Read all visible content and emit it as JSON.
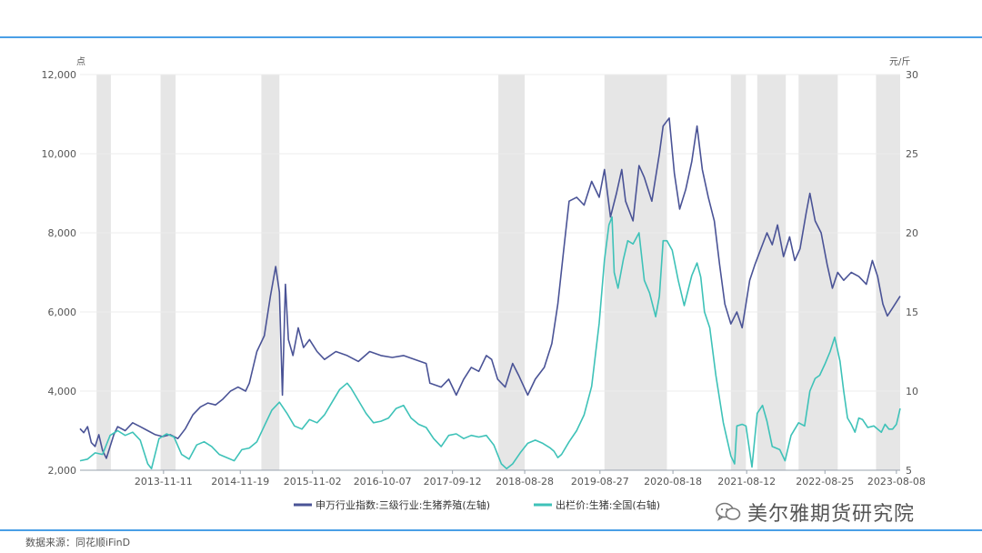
{
  "chart_data": {
    "type": "line",
    "left_unit": "点",
    "right_unit": "元/斤",
    "left_axis": {
      "min": 2000,
      "max": 12000,
      "ticks": [
        2000,
        4000,
        6000,
        8000,
        10000,
        12000
      ],
      "tick_labels": [
        "2,000",
        "4,000",
        "6,000",
        "8,000",
        "10,000",
        "12,000"
      ]
    },
    "right_axis": {
      "min": 5,
      "max": 30,
      "ticks": [
        5,
        10,
        15,
        20,
        25,
        30
      ],
      "tick_labels": [
        "5",
        "10",
        "15",
        "20",
        "25",
        "30"
      ]
    },
    "x_range": [
      2012.75,
      2023.65
    ],
    "x_ticks": [
      {
        "x": 2013.86,
        "label": "2013-11-11"
      },
      {
        "x": 2014.88,
        "label": "2014-11-19"
      },
      {
        "x": 2015.84,
        "label": "2015-11-02"
      },
      {
        "x": 2016.77,
        "label": "2016-10-07"
      },
      {
        "x": 2017.7,
        "label": "2017-09-12"
      },
      {
        "x": 2018.66,
        "label": "2018-08-28"
      },
      {
        "x": 2019.66,
        "label": "2019-08-27"
      },
      {
        "x": 2020.63,
        "label": "2020-08-18"
      },
      {
        "x": 2021.61,
        "label": "2021-08-12"
      },
      {
        "x": 2022.65,
        "label": "2022-08-25"
      },
      {
        "x": 2023.6,
        "label": "2023-08-08"
      }
    ],
    "shaded_periods": [
      [
        2012.97,
        2013.16
      ],
      [
        2013.82,
        2014.02
      ],
      [
        2015.16,
        2015.4
      ],
      [
        2018.31,
        2018.66
      ],
      [
        2019.72,
        2020.55
      ],
      [
        2021.4,
        2021.6
      ],
      [
        2021.75,
        2022.13
      ],
      [
        2022.3,
        2022.82
      ],
      [
        2023.33,
        2023.65
      ]
    ],
    "series": [
      {
        "name": "申万行业指数:三级行业:生猪养殖(左轴)",
        "axis": "left",
        "color": "#4a5396",
        "points": [
          [
            2012.75,
            3050
          ],
          [
            2012.8,
            2950
          ],
          [
            2012.85,
            3100
          ],
          [
            2012.9,
            2700
          ],
          [
            2012.95,
            2600
          ],
          [
            2013.0,
            2900
          ],
          [
            2013.05,
            2500
          ],
          [
            2013.1,
            2300
          ],
          [
            2013.15,
            2600
          ],
          [
            2013.2,
            2900
          ],
          [
            2013.25,
            3100
          ],
          [
            2013.35,
            3000
          ],
          [
            2013.45,
            3200
          ],
          [
            2013.55,
            3100
          ],
          [
            2013.65,
            3000
          ],
          [
            2013.75,
            2900
          ],
          [
            2013.85,
            2850
          ],
          [
            2013.95,
            2900
          ],
          [
            2014.05,
            2800
          ],
          [
            2014.15,
            3050
          ],
          [
            2014.25,
            3400
          ],
          [
            2014.35,
            3600
          ],
          [
            2014.45,
            3700
          ],
          [
            2014.55,
            3650
          ],
          [
            2014.65,
            3800
          ],
          [
            2014.75,
            4000
          ],
          [
            2014.85,
            4100
          ],
          [
            2014.95,
            4000
          ],
          [
            2015.0,
            4200
          ],
          [
            2015.1,
            5000
          ],
          [
            2015.2,
            5400
          ],
          [
            2015.28,
            6400
          ],
          [
            2015.35,
            7150
          ],
          [
            2015.4,
            6500
          ],
          [
            2015.44,
            3900
          ],
          [
            2015.48,
            6700
          ],
          [
            2015.52,
            5300
          ],
          [
            2015.58,
            4900
          ],
          [
            2015.65,
            5600
          ],
          [
            2015.72,
            5100
          ],
          [
            2015.8,
            5300
          ],
          [
            2015.9,
            5000
          ],
          [
            2016.0,
            4800
          ],
          [
            2016.15,
            5000
          ],
          [
            2016.3,
            4900
          ],
          [
            2016.45,
            4750
          ],
          [
            2016.6,
            5000
          ],
          [
            2016.75,
            4900
          ],
          [
            2016.9,
            4850
          ],
          [
            2017.05,
            4900
          ],
          [
            2017.2,
            4800
          ],
          [
            2017.35,
            4700
          ],
          [
            2017.4,
            4200
          ],
          [
            2017.55,
            4100
          ],
          [
            2017.65,
            4300
          ],
          [
            2017.75,
            3900
          ],
          [
            2017.85,
            4300
          ],
          [
            2017.95,
            4600
          ],
          [
            2018.05,
            4500
          ],
          [
            2018.15,
            4900
          ],
          [
            2018.22,
            4800
          ],
          [
            2018.3,
            4300
          ],
          [
            2018.4,
            4100
          ],
          [
            2018.5,
            4700
          ],
          [
            2018.58,
            4400
          ],
          [
            2018.7,
            3900
          ],
          [
            2018.8,
            4300
          ],
          [
            2018.92,
            4600
          ],
          [
            2019.02,
            5200
          ],
          [
            2019.1,
            6200
          ],
          [
            2019.18,
            7600
          ],
          [
            2019.25,
            8800
          ],
          [
            2019.35,
            8900
          ],
          [
            2019.45,
            8700
          ],
          [
            2019.55,
            9300
          ],
          [
            2019.65,
            8900
          ],
          [
            2019.72,
            9600
          ],
          [
            2019.8,
            8400
          ],
          [
            2019.88,
            9000
          ],
          [
            2019.95,
            9600
          ],
          [
            2020.0,
            8800
          ],
          [
            2020.1,
            8300
          ],
          [
            2020.18,
            9700
          ],
          [
            2020.25,
            9400
          ],
          [
            2020.35,
            8800
          ],
          [
            2020.45,
            10000
          ],
          [
            2020.5,
            10700
          ],
          [
            2020.58,
            10900
          ],
          [
            2020.65,
            9500
          ],
          [
            2020.72,
            8600
          ],
          [
            2020.8,
            9100
          ],
          [
            2020.88,
            9800
          ],
          [
            2020.95,
            10700
          ],
          [
            2021.02,
            9600
          ],
          [
            2021.1,
            8900
          ],
          [
            2021.18,
            8300
          ],
          [
            2021.25,
            7200
          ],
          [
            2021.32,
            6200
          ],
          [
            2021.4,
            5700
          ],
          [
            2021.48,
            6000
          ],
          [
            2021.55,
            5600
          ],
          [
            2021.6,
            6200
          ],
          [
            2021.65,
            6800
          ],
          [
            2021.72,
            7200
          ],
          [
            2021.8,
            7600
          ],
          [
            2021.88,
            8000
          ],
          [
            2021.95,
            7700
          ],
          [
            2022.02,
            8200
          ],
          [
            2022.1,
            7400
          ],
          [
            2022.18,
            7900
          ],
          [
            2022.25,
            7300
          ],
          [
            2022.32,
            7600
          ],
          [
            2022.4,
            8500
          ],
          [
            2022.45,
            9000
          ],
          [
            2022.52,
            8300
          ],
          [
            2022.6,
            8000
          ],
          [
            2022.68,
            7200
          ],
          [
            2022.75,
            6600
          ],
          [
            2022.82,
            7000
          ],
          [
            2022.9,
            6800
          ],
          [
            2023.0,
            7000
          ],
          [
            2023.1,
            6900
          ],
          [
            2023.2,
            6700
          ],
          [
            2023.28,
            7300
          ],
          [
            2023.35,
            6900
          ],
          [
            2023.42,
            6200
          ],
          [
            2023.48,
            5900
          ],
          [
            2023.55,
            6100
          ],
          [
            2023.65,
            6400
          ]
        ]
      },
      {
        "name": "出栏价:生猪:全国(右轴)",
        "axis": "right",
        "color": "#3ec2b8",
        "points": [
          [
            2012.75,
            5.6
          ],
          [
            2012.85,
            5.7
          ],
          [
            2012.95,
            6.1
          ],
          [
            2013.05,
            6.0
          ],
          [
            2013.15,
            7.2
          ],
          [
            2013.25,
            7.5
          ],
          [
            2013.35,
            7.2
          ],
          [
            2013.45,
            7.4
          ],
          [
            2013.55,
            6.9
          ],
          [
            2013.65,
            5.4
          ],
          [
            2013.7,
            5.1
          ],
          [
            2013.8,
            7.0
          ],
          [
            2013.9,
            7.3
          ],
          [
            2014.0,
            7.1
          ],
          [
            2014.1,
            6.0
          ],
          [
            2014.2,
            5.7
          ],
          [
            2014.3,
            6.6
          ],
          [
            2014.4,
            6.8
          ],
          [
            2014.5,
            6.5
          ],
          [
            2014.6,
            6.0
          ],
          [
            2014.7,
            5.8
          ],
          [
            2014.8,
            5.6
          ],
          [
            2014.9,
            6.3
          ],
          [
            2015.0,
            6.4
          ],
          [
            2015.1,
            6.8
          ],
          [
            2015.2,
            7.8
          ],
          [
            2015.3,
            8.8
          ],
          [
            2015.4,
            9.3
          ],
          [
            2015.5,
            8.6
          ],
          [
            2015.6,
            7.8
          ],
          [
            2015.7,
            7.6
          ],
          [
            2015.8,
            8.2
          ],
          [
            2015.9,
            8.0
          ],
          [
            2016.0,
            8.5
          ],
          [
            2016.1,
            9.3
          ],
          [
            2016.2,
            10.1
          ],
          [
            2016.3,
            10.5
          ],
          [
            2016.35,
            10.2
          ],
          [
            2016.45,
            9.4
          ],
          [
            2016.55,
            8.6
          ],
          [
            2016.65,
            8.0
          ],
          [
            2016.75,
            8.1
          ],
          [
            2016.85,
            8.3
          ],
          [
            2016.95,
            8.9
          ],
          [
            2017.05,
            9.1
          ],
          [
            2017.15,
            8.3
          ],
          [
            2017.25,
            7.9
          ],
          [
            2017.35,
            7.7
          ],
          [
            2017.45,
            7.0
          ],
          [
            2017.55,
            6.5
          ],
          [
            2017.65,
            7.2
          ],
          [
            2017.75,
            7.3
          ],
          [
            2017.85,
            7.0
          ],
          [
            2017.95,
            7.2
          ],
          [
            2018.05,
            7.1
          ],
          [
            2018.15,
            7.2
          ],
          [
            2018.25,
            6.6
          ],
          [
            2018.35,
            5.4
          ],
          [
            2018.42,
            5.1
          ],
          [
            2018.5,
            5.4
          ],
          [
            2018.6,
            6.1
          ],
          [
            2018.7,
            6.7
          ],
          [
            2018.8,
            6.9
          ],
          [
            2018.9,
            6.7
          ],
          [
            2019.0,
            6.4
          ],
          [
            2019.05,
            6.2
          ],
          [
            2019.1,
            5.8
          ],
          [
            2019.15,
            6.0
          ],
          [
            2019.25,
            6.8
          ],
          [
            2019.35,
            7.5
          ],
          [
            2019.45,
            8.5
          ],
          [
            2019.55,
            10.3
          ],
          [
            2019.65,
            14.3
          ],
          [
            2019.72,
            18.3
          ],
          [
            2019.78,
            20.5
          ],
          [
            2019.82,
            21.0
          ],
          [
            2019.85,
            17.5
          ],
          [
            2019.9,
            16.5
          ],
          [
            2019.97,
            18.3
          ],
          [
            2020.03,
            19.5
          ],
          [
            2020.1,
            19.3
          ],
          [
            2020.18,
            20.0
          ],
          [
            2020.25,
            17.0
          ],
          [
            2020.32,
            16.2
          ],
          [
            2020.4,
            14.7
          ],
          [
            2020.45,
            16.0
          ],
          [
            2020.5,
            19.5
          ],
          [
            2020.55,
            19.5
          ],
          [
            2020.62,
            18.9
          ],
          [
            2020.7,
            17.0
          ],
          [
            2020.78,
            15.4
          ],
          [
            2020.88,
            17.3
          ],
          [
            2020.95,
            18.1
          ],
          [
            2021.0,
            17.2
          ],
          [
            2021.05,
            15.0
          ],
          [
            2021.12,
            14.0
          ],
          [
            2021.2,
            11.0
          ],
          [
            2021.3,
            8.0
          ],
          [
            2021.4,
            5.9
          ],
          [
            2021.45,
            5.4
          ],
          [
            2021.48,
            7.8
          ],
          [
            2021.55,
            7.9
          ],
          [
            2021.6,
            7.8
          ],
          [
            2021.68,
            5.2
          ],
          [
            2021.75,
            8.6
          ],
          [
            2021.82,
            9.1
          ],
          [
            2021.88,
            8.1
          ],
          [
            2021.95,
            6.5
          ],
          [
            2022.05,
            6.3
          ],
          [
            2022.12,
            5.6
          ],
          [
            2022.2,
            7.2
          ],
          [
            2022.3,
            8.0
          ],
          [
            2022.38,
            7.8
          ],
          [
            2022.45,
            10.0
          ],
          [
            2022.52,
            10.8
          ],
          [
            2022.58,
            11.0
          ],
          [
            2022.65,
            11.7
          ],
          [
            2022.72,
            12.5
          ],
          [
            2022.78,
            13.4
          ],
          [
            2022.85,
            11.9
          ],
          [
            2022.9,
            10.0
          ],
          [
            2022.95,
            8.3
          ],
          [
            2023.0,
            7.9
          ],
          [
            2023.05,
            7.4
          ],
          [
            2023.1,
            8.3
          ],
          [
            2023.15,
            8.2
          ],
          [
            2023.22,
            7.7
          ],
          [
            2023.3,
            7.8
          ],
          [
            2023.4,
            7.4
          ],
          [
            2023.45,
            7.9
          ],
          [
            2023.5,
            7.6
          ],
          [
            2023.55,
            7.6
          ],
          [
            2023.6,
            7.9
          ],
          [
            2023.65,
            8.9
          ]
        ]
      }
    ]
  },
  "legend": {
    "items": [
      {
        "label": "申万行业指数:三级行业:生猪养殖(左轴)",
        "color": "#4a5396"
      },
      {
        "label": "出栏价:生猪:全国(右轴)",
        "color": "#3ec2b8"
      }
    ]
  },
  "watermark": "美尔雅期货研究院",
  "source": "数据来源：同花顺iFinD"
}
